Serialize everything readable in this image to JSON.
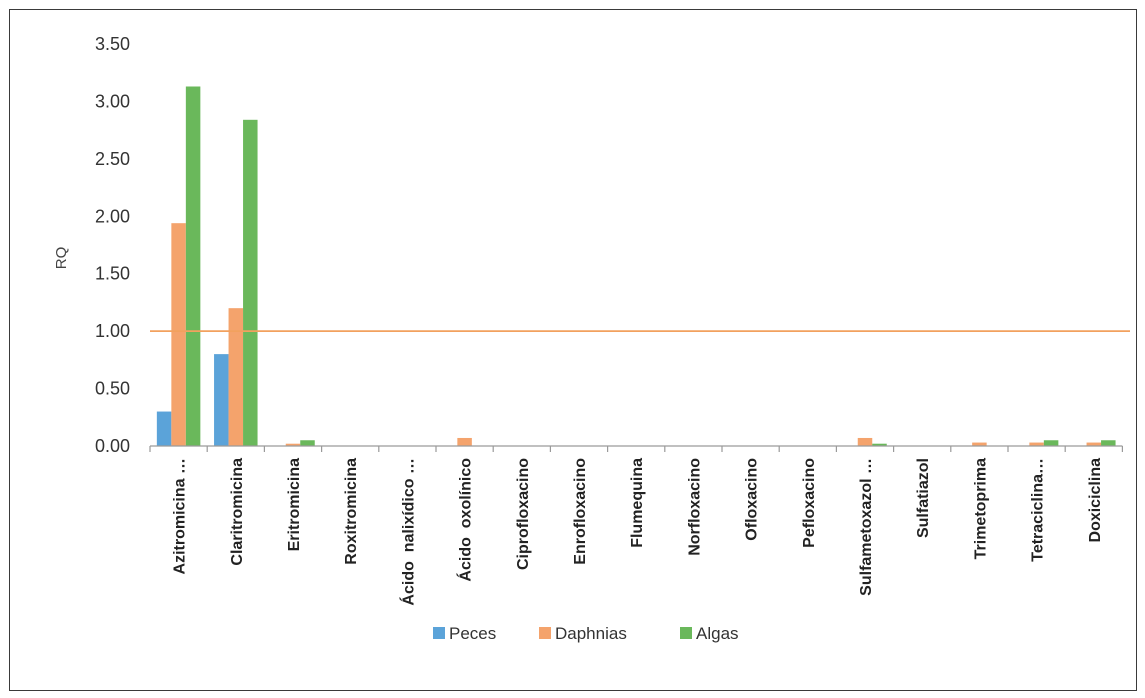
{
  "chart_data": {
    "type": "bar",
    "title": "",
    "xlabel": "",
    "ylabel": "RQ",
    "ylim": [
      0,
      3.5
    ],
    "yticks": [
      "0.00",
      "0.50",
      "1.00",
      "1.50",
      "2.00",
      "2.50",
      "3.00",
      "3.50"
    ],
    "categories": [
      "Azitromicina …",
      "Claritromicina",
      "Eritromicina",
      "Roxitromicina",
      "Ácido  nalixídico …",
      "Ácido  oxolínico",
      "Ciprofloxacino",
      "Enrofloxacino",
      "Flumequina",
      "Norfloxacino",
      "Ofloxacino",
      "Pefloxacino",
      "Sulfametoxazol …",
      "Sulfatiazol",
      "Trimetoprima",
      "Tetraciclina…",
      "Doxiciclina"
    ],
    "series": [
      {
        "name": "Peces",
        "color": "#5ba3d9",
        "values": [
          0.3,
          0.8,
          0,
          0,
          0,
          0,
          0,
          0,
          0,
          0,
          0,
          0,
          0,
          0,
          0,
          0,
          0
        ]
      },
      {
        "name": "Daphnias",
        "color": "#f4a36c",
        "values": [
          1.94,
          1.2,
          0.02,
          0,
          0,
          0.07,
          0,
          0,
          0,
          0,
          0,
          0,
          0.07,
          0,
          0.03,
          0.03,
          0.03
        ]
      },
      {
        "name": "Algas",
        "color": "#6ab85b",
        "values": [
          3.13,
          2.84,
          0.05,
          0,
          0,
          0,
          0,
          0,
          0,
          0,
          0,
          0,
          0.02,
          0,
          0,
          0.05,
          0.05
        ]
      }
    ],
    "reference_line": {
      "value": 1.0,
      "color": "#f2a15e"
    },
    "grid": false,
    "legend_position": "bottom"
  }
}
